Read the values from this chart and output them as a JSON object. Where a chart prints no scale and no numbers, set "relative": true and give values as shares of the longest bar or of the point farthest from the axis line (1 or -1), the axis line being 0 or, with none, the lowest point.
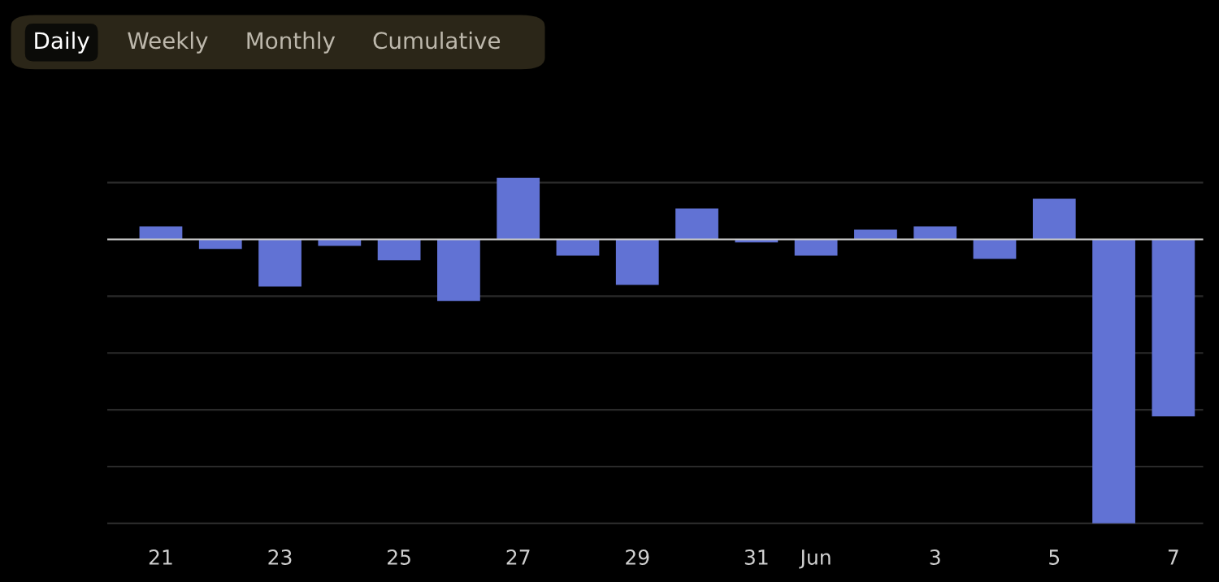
{
  "chart_data": {
    "type": "bar",
    "relative": true,
    "categories": [
      "21",
      null,
      "23",
      null,
      "25",
      null,
      "27",
      null,
      "29",
      null,
      "31",
      "Jun",
      null,
      "3",
      null,
      "5",
      null,
      "7"
    ],
    "values": [
      0.046,
      -0.034,
      -0.166,
      -0.023,
      -0.074,
      -0.217,
      0.217,
      -0.057,
      -0.16,
      0.109,
      -0.011,
      -0.057,
      0.034,
      0.046,
      -0.069,
      0.143,
      -1,
      -0.623
    ],
    "color": "#6172d4",
    "grid": "y",
    "legend": false,
    "annotations": [
      "Daily",
      "Weekly",
      "Monthly",
      "Cumulative"
    ]
  }
}
